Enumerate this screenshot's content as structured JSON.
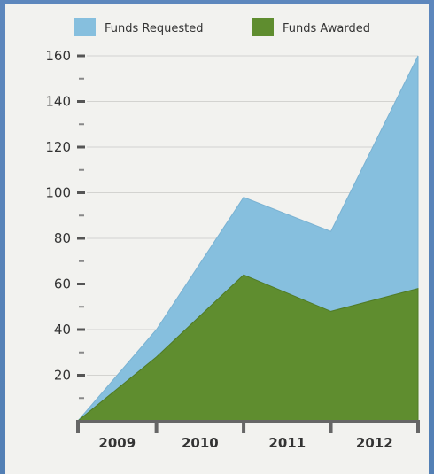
{
  "chart_data": {
    "type": "area",
    "title": "",
    "xlabel": "",
    "ylabel": "",
    "x": [
      2009,
      2009.9,
      2010.9,
      2011.9,
      2012.9
    ],
    "categories": [
      "2009",
      "2010",
      "2011",
      "2012"
    ],
    "ylim": [
      0,
      160
    ],
    "yticks": [
      20,
      40,
      60,
      80,
      100,
      120,
      140,
      160
    ],
    "grid": true,
    "legend_position": "top",
    "stacked": false,
    "series": [
      {
        "name": "Funds Requested",
        "color": "#86bfde",
        "values": [
          0,
          40,
          98,
          83,
          160
        ]
      },
      {
        "name": "Funds Awarded",
        "color": "#5f8d2f",
        "values": [
          0,
          28,
          64,
          48,
          58
        ]
      }
    ]
  }
}
